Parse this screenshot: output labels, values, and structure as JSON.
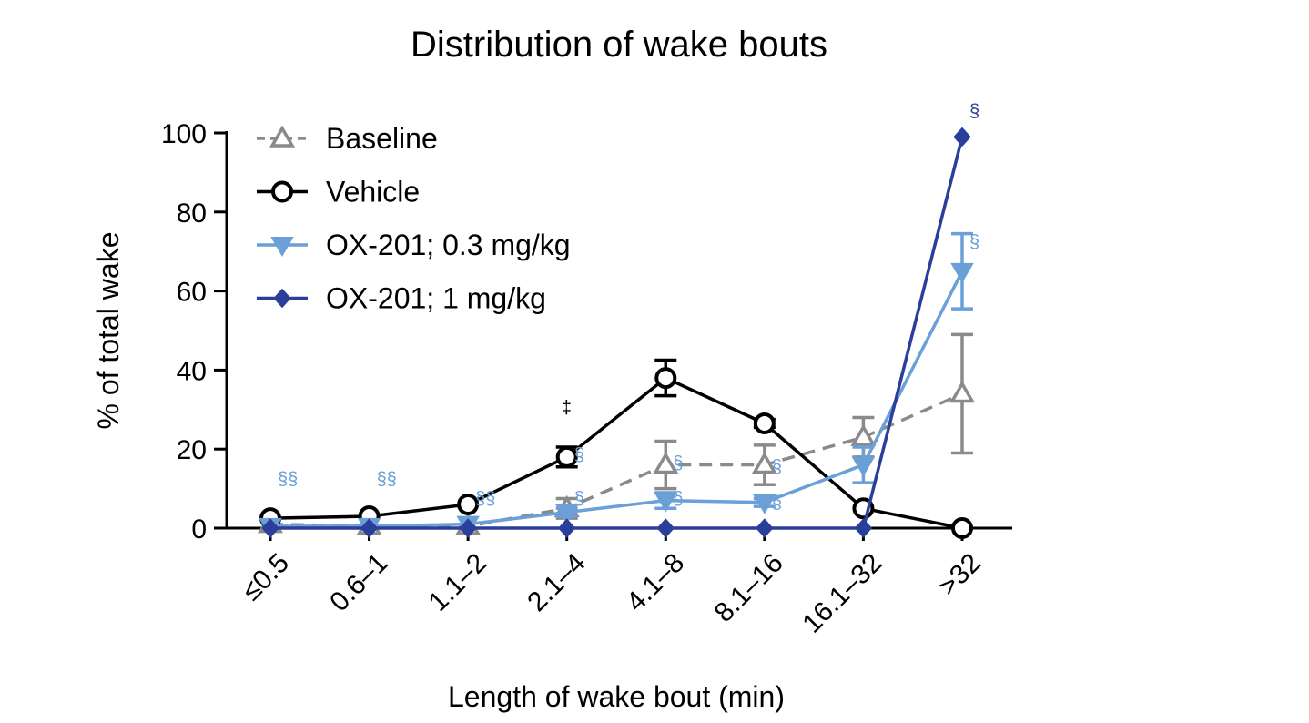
{
  "chart_data": {
    "type": "line",
    "title": "Distribution of wake bouts",
    "xlabel": "Length of wake bout (min)",
    "ylabel": "% of total wake",
    "ylim": [
      0,
      100
    ],
    "yticks": [
      0,
      20,
      40,
      60,
      80,
      100
    ],
    "categories": [
      "≤0.5",
      "0.6–1",
      "1.1–2",
      "2.1–4",
      "4.1–8",
      "8.1–16",
      "16.1–32",
      ">32"
    ],
    "legend_position": "top-left",
    "series": [
      {
        "name": "Baseline",
        "color": "#8a8a8a",
        "marker": "triangle-up-open",
        "line_style": "dashed",
        "values": [
          1,
          0.5,
          0.5,
          5,
          16,
          16,
          23,
          34
        ],
        "error": [
          0,
          0,
          0,
          2.5,
          6,
          5,
          5,
          15
        ]
      },
      {
        "name": "Vehicle",
        "color": "#000000",
        "marker": "circle-open",
        "line_style": "solid",
        "values": [
          2.5,
          3,
          6,
          18,
          38,
          26.5,
          5,
          0
        ],
        "error": [
          0,
          0,
          0,
          2.5,
          4.5,
          1,
          0,
          0
        ]
      },
      {
        "name": "OX-201; 0.3 mg/kg",
        "color": "#6a9fd8",
        "marker": "triangle-down-filled",
        "line_style": "solid",
        "values": [
          0.5,
          0.5,
          1,
          4,
          7,
          6.5,
          16,
          65
        ],
        "error": [
          0,
          0,
          0,
          1,
          2,
          1,
          4.5,
          9.5
        ]
      },
      {
        "name": "OX-201; 1 mg/kg",
        "color": "#2a3f9a",
        "marker": "diamond-filled",
        "line_style": "solid",
        "values": [
          0,
          0,
          0,
          0,
          0,
          0,
          0,
          99
        ],
        "error": [
          0,
          0,
          0,
          0,
          0,
          0,
          0,
          0
        ]
      }
    ],
    "annotations": [
      {
        "text": "§§",
        "category": "≤0.5",
        "y": 11,
        "color": "#6a9fd8"
      },
      {
        "text": "§§",
        "category": "0.6–1",
        "y": 11,
        "color": "#6a9fd8"
      },
      {
        "text": "§§",
        "category": "1.1–2",
        "y": 6,
        "color": "#6a9fd8"
      },
      {
        "text": "‡",
        "category": "2.1–4",
        "y": 29,
        "color": "#000000"
      },
      {
        "text": "§",
        "category": "2.1–4",
        "y": 17,
        "color": "#6a9fd8"
      },
      {
        "text": "§",
        "category": "2.1–4",
        "y": 6,
        "color": "#6a9fd8"
      },
      {
        "text": "§",
        "category": "4.1–8",
        "y": 15,
        "color": "#6a9fd8"
      },
      {
        "text": "§",
        "category": "4.1–8",
        "y": 6,
        "color": "#6a9fd8"
      },
      {
        "text": "§",
        "category": "8.1–16",
        "y": 14,
        "color": "#6a9fd8"
      },
      {
        "text": "§",
        "category": "8.1–16",
        "y": 5,
        "color": "#6a9fd8"
      },
      {
        "text": "§",
        "category": ">32",
        "y": 104,
        "color": "#2a3f9a"
      },
      {
        "text": "§",
        "category": ">32",
        "y": 71,
        "color": "#6a9fd8"
      }
    ]
  }
}
